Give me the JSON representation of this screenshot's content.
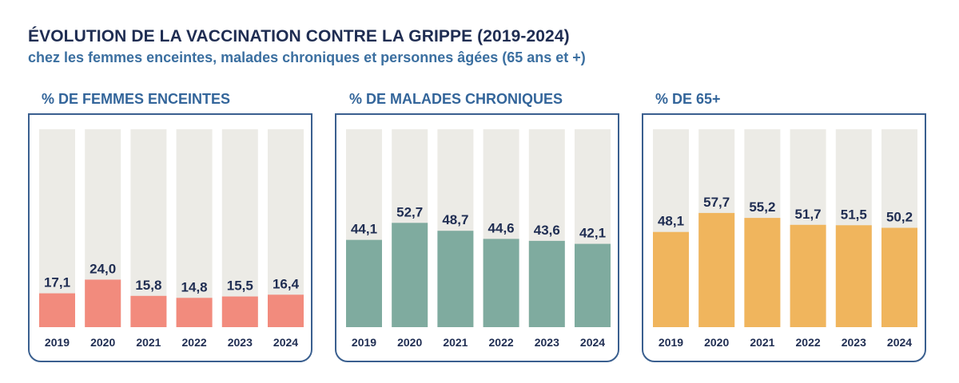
{
  "title": "ÉVOLUTION DE LA VACCINATION CONTRE LA GRIPPE (2019-2024)",
  "subtitle": "chez les femmes enceintes, malades chroniques et personnes âgées (65 ans et +)",
  "chart_data": [
    {
      "type": "bar",
      "title": "% DE FEMMES ENCEINTES",
      "categories": [
        "2019",
        "2020",
        "2021",
        "2022",
        "2023",
        "2024"
      ],
      "values": [
        17.1,
        24.0,
        15.8,
        14.8,
        15.5,
        16.4
      ],
      "labels": [
        "17,1",
        "24,0",
        "15,8",
        "14,8",
        "15,5",
        "16,4"
      ],
      "ylim": [
        0,
        100
      ],
      "color": "#f28b7d",
      "background_color": "#ecebe6"
    },
    {
      "type": "bar",
      "title": "% DE MALADES CHRONIQUES",
      "categories": [
        "2019",
        "2020",
        "2021",
        "2022",
        "2023",
        "2024"
      ],
      "values": [
        44.1,
        52.7,
        48.7,
        44.6,
        43.6,
        42.1
      ],
      "labels": [
        "44,1",
        "52,7",
        "48,7",
        "44,6",
        "43,6",
        "42,1"
      ],
      "ylim": [
        0,
        100
      ],
      "color": "#7fab9f",
      "background_color": "#ecebe6"
    },
    {
      "type": "bar",
      "title": "% DE 65+",
      "categories": [
        "2019",
        "2020",
        "2021",
        "2022",
        "2023",
        "2024"
      ],
      "values": [
        48.1,
        57.7,
        55.2,
        51.7,
        51.5,
        50.2
      ],
      "labels": [
        "48,1",
        "57,7",
        "55,2",
        "51,7",
        "51,5",
        "50,2"
      ],
      "ylim": [
        0,
        100
      ],
      "color": "#f0b55d",
      "background_color": "#ecebe6"
    }
  ]
}
